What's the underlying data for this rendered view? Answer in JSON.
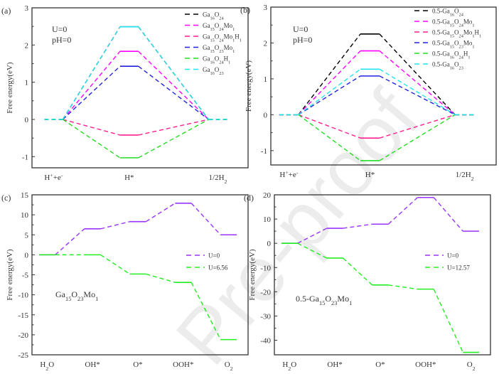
{
  "chart_data": [
    {
      "id": "a",
      "type": "line",
      "panel_label": "(a)",
      "title": "",
      "xlabel": "",
      "ylabel": "Free energy(eV)",
      "ylim": [
        -1.3,
        3
      ],
      "yticks": [
        -1,
        0,
        1,
        2,
        3
      ],
      "categories": [
        "H⁺+e⁻",
        "H*",
        "1/2H₂"
      ],
      "annotations": [
        "U=0",
        "pH=0"
      ],
      "legend_position": "top-right",
      "series": [
        {
          "name": "Ga₁₆O₂₄",
          "color": "#000000",
          "values": [
            0,
            2.49,
            0
          ]
        },
        {
          "name": "Ga₁₅O₂₄Mo₁",
          "color": "#ff00ff",
          "values": [
            0,
            1.83,
            0
          ]
        },
        {
          "name": "Ga₁₅O₂₄Mo₁H₁",
          "color": "#ff1f8f",
          "values": [
            0,
            -0.42,
            0
          ]
        },
        {
          "name": "Ga₁₅O₂₃Mo₁",
          "color": "#2222dd",
          "values": [
            0,
            1.43,
            0
          ]
        },
        {
          "name": "Ga₁₆O₂₄H₁",
          "color": "#22dd22",
          "values": [
            0,
            -1.03,
            0
          ]
        },
        {
          "name": "Ga₁₆O₂₃",
          "color": "#22e5f0",
          "values": [
            0,
            2.49,
            0
          ]
        }
      ]
    },
    {
      "id": "b",
      "type": "line",
      "panel_label": "(b)",
      "title": "",
      "xlabel": "",
      "ylabel": "Free energy(eV)",
      "ylim": [
        -1.4,
        3
      ],
      "yticks": [
        -1,
        0,
        1,
        2,
        3
      ],
      "categories": [
        "H⁺+e⁻",
        "H*",
        "1/2H₂"
      ],
      "annotations": [
        "U=0",
        "pH=0"
      ],
      "legend_position": "top-right",
      "series": [
        {
          "name": "0.5-Ga₁₆O₂₄",
          "color": "#000000",
          "values": [
            0,
            2.25,
            0
          ]
        },
        {
          "name": "0.5-Ga₁₅O₂₄Mo₁",
          "color": "#ff00ff",
          "values": [
            0,
            1.78,
            0
          ]
        },
        {
          "name": "0.5-Ga₁₅O₂₄Mo₁H₁",
          "color": "#ff1f8f",
          "values": [
            0,
            -0.65,
            0
          ]
        },
        {
          "name": "0.5-Ga₁₅O₂₃Mo₁",
          "color": "#2222dd",
          "values": [
            0,
            1.08,
            0
          ]
        },
        {
          "name": "0.5-Ga₁₆O₂₄H₁",
          "color": "#22dd22",
          "values": [
            0,
            -1.28,
            0
          ]
        },
        {
          "name": "0.5-Ga₁₆O₂₃",
          "color": "#22e5f0",
          "values": [
            0,
            1.27,
            0
          ]
        }
      ]
    },
    {
      "id": "c",
      "type": "line",
      "panel_label": "(c)",
      "title": "",
      "xlabel": "",
      "ylabel": "Free energy(eV)",
      "ylim": [
        -25,
        15
      ],
      "yticks": [
        -25,
        -20,
        -15,
        -10,
        -5,
        0,
        5,
        10,
        15
      ],
      "categories": [
        "H₂O",
        "OH*",
        "O*",
        "OOH*",
        "O₂"
      ],
      "annotations": [
        "Ga₁₅O₂₃Mo₁"
      ],
      "legend_position": "right",
      "series": [
        {
          "name": "U=0",
          "color": "#9933ff",
          "values": [
            0,
            6.5,
            8.3,
            12.9,
            5.0
          ]
        },
        {
          "name": "U=6.56",
          "color": "#22ee22",
          "values": [
            0,
            0,
            -4.8,
            -6.9,
            -21.2
          ]
        }
      ]
    },
    {
      "id": "d",
      "type": "line",
      "panel_label": "(d)",
      "title": "",
      "xlabel": "",
      "ylabel": "Free energy(eV)",
      "ylim": [
        -46,
        20
      ],
      "yticks": [
        -40,
        -30,
        -20,
        -10,
        0,
        10,
        20
      ],
      "categories": [
        "H₂O",
        "OH*",
        "O*",
        "OOH*",
        "O₂"
      ],
      "annotations": [
        "0.5-Ga₁₅O₂₃Mo₁"
      ],
      "legend_position": "right",
      "series": [
        {
          "name": "U=0",
          "color": "#9933ff",
          "values": [
            0,
            6.2,
            7.9,
            18.9,
            5.0
          ]
        },
        {
          "name": "U=12.57",
          "color": "#22ee22",
          "values": [
            0,
            -6.1,
            -17.2,
            -18.9,
            -45.0
          ]
        }
      ]
    }
  ],
  "watermark": "Pre-proof"
}
